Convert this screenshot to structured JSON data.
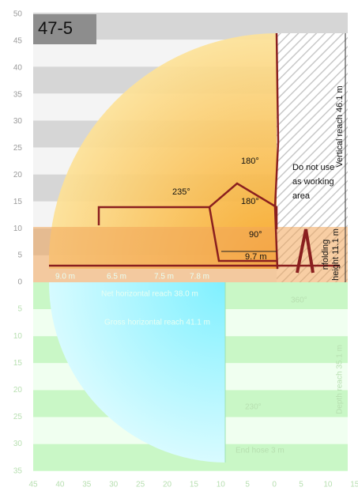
{
  "header": {
    "title": "47-5"
  },
  "axis": {
    "left_upper": [
      "50",
      "45",
      "40",
      "35",
      "30",
      "25",
      "20",
      "15",
      "10",
      "5",
      "0"
    ],
    "left_lower": [
      "5",
      "10",
      "15",
      "20",
      "25",
      "30",
      "35"
    ],
    "bottom": [
      "45",
      "40",
      "35",
      "30",
      "25",
      "20",
      "15",
      "10",
      "5",
      "0",
      "5",
      "10",
      "15"
    ]
  },
  "labels": {
    "vertical_reach": "Vertical reach 46.1 m",
    "no_work_1": "Do not use",
    "no_work_2": "as working",
    "no_work_3": "area",
    "angle_180_top": "180°",
    "angle_235": "235°",
    "angle_180_mid": "180°",
    "angle_90": "90°",
    "fold_length": "9.7 m",
    "unfolding_1": "nfolding",
    "unfolding_2": "height 11.1 m",
    "segments": [
      "9.0 m",
      "6.5 m",
      "7.5 m",
      "7.8 m"
    ],
    "net_reach": "Net horizontal reach 38.0 m",
    "gross_reach": "Gross horizontal reach 41.1 m",
    "angle_360": "360°",
    "depth_reach": "Depth reach 35.1 m",
    "angle_230": "230°",
    "end_hose": "End hose 3 m"
  }
}
